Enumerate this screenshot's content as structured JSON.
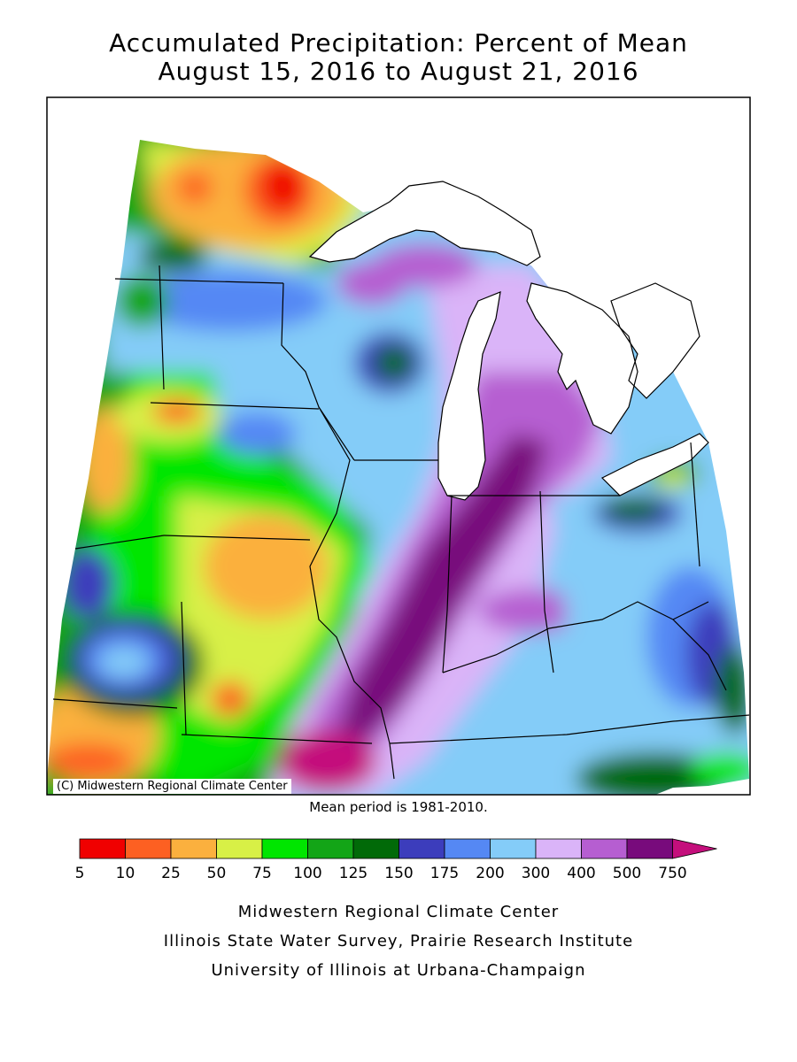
{
  "map": {
    "title_line1": "Accumulated Precipitation: Percent of Mean",
    "title_line2": "August 15, 2016 to August 21, 2016",
    "copyright": "(C) Midwestern Regional Climate Center",
    "mean_note": "Mean period is 1981-2010.",
    "colors": {
      "water": "#ffffff",
      "boundary": "#000000",
      "background": "#ffffff"
    }
  },
  "legend": {
    "bins": [
      {
        "label": "5",
        "color": "#f00000"
      },
      {
        "label": "10",
        "color": "#fd6022"
      },
      {
        "label": "25",
        "color": "#fbb03e"
      },
      {
        "label": "50",
        "color": "#d8f046"
      },
      {
        "label": "75",
        "color": "#00e600"
      },
      {
        "label": "100",
        "color": "#13a517"
      },
      {
        "label": "125",
        "color": "#016a08"
      },
      {
        "label": "150",
        "color": "#3c3dbc"
      },
      {
        "label": "175",
        "color": "#5588f4"
      },
      {
        "label": "200",
        "color": "#84ccf8"
      },
      {
        "label": "300",
        "color": "#dab4f8"
      },
      {
        "label": "400",
        "color": "#b65ed1"
      },
      {
        "label": "500",
        "color": "#780b7c"
      },
      {
        "label": "750",
        "color": "#c40f7c"
      }
    ]
  },
  "credits": {
    "line1": "Midwestern Regional Climate Center",
    "line2": "Illinois State Water Survey, Prairie Research Institute",
    "line3": "University of Illinois at Urbana-Champaign"
  }
}
